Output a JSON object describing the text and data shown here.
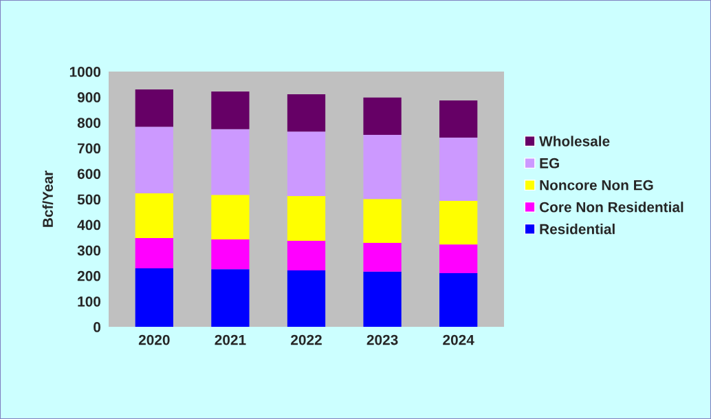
{
  "chart_data": {
    "type": "bar",
    "stacked": true,
    "ylabel": "Bcf/Year",
    "categories": [
      "2020",
      "2021",
      "2022",
      "2023",
      "2024"
    ],
    "series": [
      {
        "name": "Residential",
        "color": "#0000ff",
        "values": [
          229,
          226,
          221,
          216,
          210
        ]
      },
      {
        "name": "Core Non Residential",
        "color": "#ff00ff",
        "values": [
          119,
          116,
          116,
          113,
          113
        ]
      },
      {
        "name": "Noncore Non EG",
        "color": "#ffff00",
        "values": [
          175,
          175,
          175,
          172,
          170
        ]
      },
      {
        "name": "EG",
        "color": "#cc99ff",
        "values": [
          261,
          257,
          253,
          251,
          248
        ]
      },
      {
        "name": "Wholesale",
        "color": "#660066",
        "values": [
          146,
          148,
          146,
          146,
          146
        ]
      }
    ],
    "ylim": [
      0,
      1000
    ],
    "yticks": [
      0,
      100,
      200,
      300,
      400,
      500,
      600,
      700,
      800,
      900,
      1000
    ],
    "legend": "right",
    "grid": false
  }
}
